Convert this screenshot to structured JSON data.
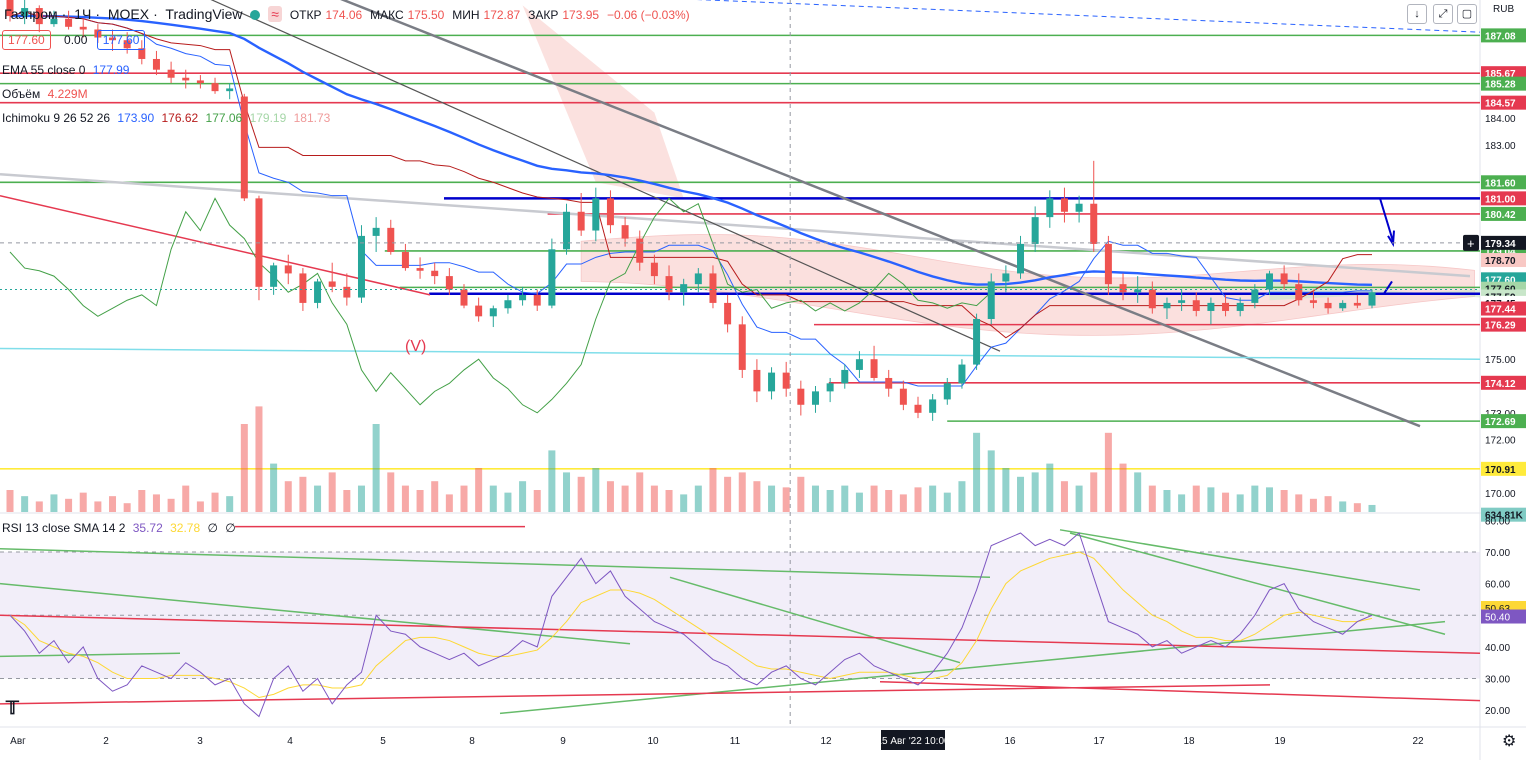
{
  "header": {
    "symbol": "Газпром",
    "interval": "1Ч",
    "exchange": "MOEX",
    "platform": "TradingView",
    "ohlc": {
      "open_label": "ОТКР",
      "open": "174.06",
      "high_label": "МАКС",
      "high": "175.50",
      "low_label": "МИН",
      "low": "172.87",
      "close_label": "ЗАКР",
      "close": "173.95",
      "change": "−0.06 (−0.03%)"
    }
  },
  "price_boxes": {
    "bid": "177.60",
    "spread": "0.00",
    "ask": "177.60"
  },
  "indicators": {
    "ema": {
      "label": "EMA 55 close 0",
      "value": "177.99"
    },
    "volume": {
      "label": "Объём",
      "value": "4.229M"
    },
    "ichimoku": {
      "label": "Ichimoku 9 26 52 26",
      "values": [
        "173.90",
        "176.62",
        "177.06",
        "179.19",
        "181.73"
      ]
    },
    "rsi": {
      "label": "RSI 13 close SMA 14 2",
      "value": "35.72",
      "sma": "32.78",
      "extra1": "∅",
      "extra2": "∅"
    }
  },
  "currency": "RUB",
  "wave_label": "(V)",
  "colors": {
    "up": "#26a69a",
    "down": "#ef5350",
    "ema": "#2962ff",
    "tenkan": "#2962ff",
    "kijun": "#b71c1c",
    "lagging": "#43a047",
    "cloud_bear": "#f8c8c4",
    "cloud_bull": "#c8e6c9",
    "level_green": "#4caf50",
    "level_red": "#e53950",
    "level_blue": "#0000cc",
    "level_yellow": "#ffeb3b",
    "rsi": "#7e57c2",
    "rsi_sma": "#fdd835"
  },
  "crosshair": {
    "time_label": "15 Авг '22  10:00",
    "price_label": "179.34"
  },
  "chart_data": {
    "type": "candlestick",
    "x_ticks": [
      "Авг",
      "2",
      "3",
      "4",
      "5",
      "8",
      "9",
      "10",
      "11",
      "12",
      "15 Авг '22  10:00",
      "16",
      "17",
      "18",
      "19",
      "22"
    ],
    "price_ticks": [
      "185.67",
      "185.28",
      "184.00",
      "183.00",
      "181.60",
      "181.00",
      "180.42",
      "179.04",
      "178.70",
      "177.68",
      "177.60",
      "177.60",
      "177.59",
      "177.45",
      "177.44",
      "176.29",
      "175.00",
      "174.12",
      "173.00",
      "172.69",
      "172.00",
      "170.91",
      "170.00",
      "634.81K",
      "RUB",
      "187.08",
      "184.57",
      "179.34"
    ],
    "ylim": [
      169.3,
      188.4
    ],
    "candles": [
      [
        188.6,
        188.6,
        187.6,
        187.8
      ],
      [
        187.8,
        188.4,
        187.5,
        188.1
      ],
      [
        188.1,
        188.2,
        187.2,
        187.5
      ],
      [
        187.5,
        188.0,
        187.4,
        187.7
      ],
      [
        187.7,
        188.0,
        187.3,
        187.4
      ],
      [
        187.4,
        187.7,
        187.0,
        187.3
      ],
      [
        187.3,
        187.5,
        186.8,
        187.0
      ],
      [
        187.0,
        187.3,
        186.5,
        186.9
      ],
      [
        186.9,
        187.2,
        186.4,
        186.6
      ],
      [
        186.6,
        186.9,
        186.0,
        186.2
      ],
      [
        186.2,
        186.5,
        185.6,
        185.8
      ],
      [
        185.8,
        186.1,
        185.3,
        185.5
      ],
      [
        185.5,
        185.8,
        185.1,
        185.4
      ],
      [
        185.4,
        185.6,
        185.1,
        185.3
      ],
      [
        185.3,
        185.5,
        184.9,
        185.0
      ],
      [
        185.0,
        185.3,
        184.7,
        185.1
      ],
      [
        184.8,
        184.9,
        180.9,
        181.0
      ],
      [
        181.0,
        181.1,
        177.2,
        177.7
      ],
      [
        177.7,
        178.6,
        177.4,
        178.5
      ],
      [
        178.5,
        178.9,
        177.8,
        178.2
      ],
      [
        178.2,
        178.4,
        176.8,
        177.1
      ],
      [
        177.1,
        178.0,
        176.9,
        177.9
      ],
      [
        177.9,
        178.6,
        177.5,
        177.7
      ],
      [
        177.7,
        178.2,
        177.0,
        177.3
      ],
      [
        177.3,
        180.0,
        177.1,
        179.6
      ],
      [
        179.6,
        180.3,
        179.0,
        179.9
      ],
      [
        179.9,
        180.2,
        178.9,
        179.0
      ],
      [
        179.0,
        179.3,
        178.3,
        178.4
      ],
      [
        178.4,
        178.8,
        178.0,
        178.3
      ],
      [
        178.3,
        178.6,
        177.8,
        178.1
      ],
      [
        178.1,
        178.4,
        177.4,
        177.6
      ],
      [
        177.6,
        177.8,
        176.9,
        177.0
      ],
      [
        177.0,
        177.3,
        176.4,
        176.6
      ],
      [
        176.6,
        177.0,
        176.2,
        176.9
      ],
      [
        176.9,
        177.4,
        176.7,
        177.2
      ],
      [
        177.2,
        177.7,
        177.0,
        177.4
      ],
      [
        177.4,
        177.6,
        176.8,
        177.0
      ],
      [
        177.0,
        179.5,
        176.9,
        179.1
      ],
      [
        179.1,
        180.8,
        178.9,
        180.5
      ],
      [
        180.5,
        181.2,
        179.6,
        179.8
      ],
      [
        179.8,
        181.4,
        179.4,
        181.0
      ],
      [
        181.0,
        181.3,
        179.7,
        180.0
      ],
      [
        180.0,
        180.3,
        179.2,
        179.5
      ],
      [
        179.5,
        179.8,
        178.3,
        178.6
      ],
      [
        178.6,
        178.9,
        177.8,
        178.1
      ],
      [
        178.1,
        178.5,
        177.2,
        177.5
      ],
      [
        177.5,
        178.0,
        177.0,
        177.8
      ],
      [
        177.8,
        178.4,
        177.5,
        178.2
      ],
      [
        178.2,
        178.5,
        176.9,
        177.1
      ],
      [
        177.1,
        177.4,
        176.0,
        176.3
      ],
      [
        176.3,
        176.6,
        174.3,
        174.6
      ],
      [
        174.6,
        175.0,
        173.4,
        173.8
      ],
      [
        173.8,
        174.7,
        173.5,
        174.5
      ],
      [
        174.5,
        174.9,
        173.6,
        173.9
      ],
      [
        173.9,
        174.2,
        172.9,
        173.3
      ],
      [
        173.3,
        174.0,
        173.0,
        173.8
      ],
      [
        173.8,
        174.3,
        173.4,
        174.1
      ],
      [
        174.1,
        174.8,
        173.9,
        174.6
      ],
      [
        174.6,
        175.3,
        174.3,
        175.0
      ],
      [
        175.0,
        175.5,
        174.2,
        174.3
      ],
      [
        174.3,
        174.6,
        173.6,
        173.9
      ],
      [
        173.9,
        174.2,
        173.1,
        173.3
      ],
      [
        173.3,
        173.6,
        172.8,
        173.0
      ],
      [
        173.0,
        173.7,
        172.7,
        173.5
      ],
      [
        173.5,
        174.3,
        173.3,
        174.1
      ],
      [
        174.1,
        175.0,
        173.9,
        174.8
      ],
      [
        174.8,
        176.7,
        174.6,
        176.5
      ],
      [
        176.5,
        178.2,
        176.3,
        177.9
      ],
      [
        177.9,
        178.5,
        177.5,
        178.2
      ],
      [
        178.2,
        179.6,
        178.0,
        179.3
      ],
      [
        179.3,
        180.7,
        179.0,
        180.3
      ],
      [
        180.3,
        181.3,
        179.9,
        181.0
      ],
      [
        181.0,
        181.4,
        180.1,
        180.5
      ],
      [
        180.5,
        181.1,
        180.1,
        180.8
      ],
      [
        180.8,
        182.4,
        179.0,
        179.3
      ],
      [
        179.3,
        179.6,
        177.4,
        177.8
      ],
      [
        177.8,
        178.2,
        177.2,
        177.5
      ],
      [
        177.5,
        178.1,
        177.1,
        177.6
      ],
      [
        177.6,
        177.9,
        176.7,
        176.9
      ],
      [
        176.9,
        177.3,
        176.5,
        177.1
      ],
      [
        177.1,
        177.6,
        176.8,
        177.2
      ],
      [
        177.2,
        177.5,
        176.6,
        176.8
      ],
      [
        176.8,
        177.3,
        176.3,
        177.1
      ],
      [
        177.1,
        177.4,
        176.6,
        176.8
      ],
      [
        176.8,
        177.3,
        176.6,
        177.1
      ],
      [
        177.1,
        177.8,
        176.9,
        177.6
      ],
      [
        177.6,
        178.3,
        177.4,
        178.2
      ],
      [
        178.2,
        178.5,
        177.6,
        177.8
      ],
      [
        177.8,
        178.2,
        177.0,
        177.2
      ],
      [
        177.2,
        177.6,
        176.9,
        177.1
      ],
      [
        177.1,
        177.3,
        176.7,
        176.9
      ],
      [
        176.9,
        177.2,
        176.8,
        177.1
      ],
      [
        177.1,
        177.4,
        176.9,
        177.0
      ],
      [
        177.0,
        177.6,
        176.9,
        177.5
      ]
    ],
    "volume_max": 1.5,
    "volumes": [
      0.25,
      0.18,
      0.12,
      0.2,
      0.15,
      0.22,
      0.12,
      0.18,
      0.1,
      0.25,
      0.2,
      0.15,
      0.3,
      0.12,
      0.22,
      0.18,
      1.0,
      1.2,
      0.55,
      0.35,
      0.4,
      0.3,
      0.45,
      0.25,
      0.3,
      1.0,
      0.45,
      0.3,
      0.25,
      0.35,
      0.2,
      0.3,
      0.5,
      0.3,
      0.22,
      0.35,
      0.25,
      0.7,
      0.45,
      0.4,
      0.5,
      0.35,
      0.3,
      0.45,
      0.3,
      0.25,
      0.2,
      0.3,
      0.5,
      0.4,
      0.45,
      0.35,
      0.3,
      0.28,
      0.4,
      0.3,
      0.25,
      0.3,
      0.22,
      0.3,
      0.25,
      0.2,
      0.28,
      0.3,
      0.22,
      0.35,
      0.9,
      0.7,
      0.5,
      0.4,
      0.45,
      0.55,
      0.35,
      0.3,
      0.45,
      0.9,
      0.55,
      0.45,
      0.3,
      0.25,
      0.2,
      0.3,
      0.28,
      0.22,
      0.2,
      0.3,
      0.28,
      0.25,
      0.2,
      0.15,
      0.18,
      0.12,
      0.1,
      0.08
    ],
    "levels": [
      {
        "price": "187.08",
        "color": "green",
        "from": 0.0
      },
      {
        "price": "185.67",
        "color": "red",
        "from": 0.0
      },
      {
        "price": "185.28",
        "color": "green",
        "from": 0.0
      },
      {
        "price": "184.57",
        "color": "red",
        "from": 0.0
      },
      {
        "price": "181.60",
        "color": "green",
        "from": 0.0
      },
      {
        "price": "181.00",
        "color": "blue",
        "from": 0.3
      },
      {
        "price": "180.42",
        "color": "red",
        "from": 0.37
      },
      {
        "price": "179.04",
        "color": "green",
        "from": 0.26
      },
      {
        "price": "177.68",
        "color": "green",
        "from": 0.27
      },
      {
        "price": "177.44",
        "color": "blue",
        "from": 0.29
      },
      {
        "price": "176.29",
        "color": "red",
        "from": 0.55
      },
      {
        "price": "174.12",
        "color": "red",
        "from": 0.56
      },
      {
        "price": "172.69",
        "color": "green",
        "from": 0.64
      },
      {
        "price": "170.91",
        "color": "yellow",
        "from": 0.0
      }
    ],
    "rsi": {
      "ylim": [
        15,
        82
      ],
      "ticks": [
        "80.00",
        "70.00",
        "60.00",
        "50.63",
        "50.40",
        "40.00",
        "30.00",
        "20.00"
      ],
      "values": [
        50,
        45,
        38,
        42,
        35,
        40,
        30,
        26,
        28,
        34,
        32,
        30,
        35,
        32,
        28,
        30,
        22,
        18,
        30,
        34,
        26,
        30,
        22,
        28,
        32,
        50,
        45,
        44,
        40,
        38,
        36,
        38,
        34,
        36,
        38,
        42,
        40,
        56,
        62,
        68,
        60,
        64,
        56,
        52,
        48,
        46,
        44,
        40,
        36,
        34,
        30,
        28,
        32,
        34,
        30,
        28,
        32,
        36,
        38,
        34,
        32,
        30,
        28,
        32,
        38,
        46,
        58,
        72,
        74,
        76,
        72,
        74,
        72,
        76,
        62,
        48,
        46,
        44,
        40,
        42,
        38,
        40,
        42,
        40,
        44,
        50,
        58,
        60,
        52,
        48,
        46,
        44,
        48,
        50
      ],
      "sma": [
        50,
        47,
        42,
        40,
        38,
        37,
        35,
        32,
        30,
        30,
        30,
        31,
        31,
        31,
        30,
        29,
        27,
        24,
        25,
        27,
        28,
        28,
        27,
        27,
        28,
        34,
        38,
        42,
        43,
        43,
        42,
        40,
        38,
        37,
        37,
        38,
        39,
        43,
        48,
        54,
        56,
        58,
        58,
        57,
        55,
        52,
        49,
        46,
        43,
        40,
        37,
        34,
        33,
        33,
        32,
        31,
        30,
        31,
        32,
        32,
        32,
        31,
        30,
        30,
        31,
        35,
        42,
        52,
        60,
        64,
        66,
        68,
        69,
        70,
        68,
        63,
        58,
        54,
        50,
        48,
        45,
        43,
        43,
        42,
        42,
        44,
        47,
        50,
        51,
        50,
        49,
        48,
        48,
        49
      ]
    }
  }
}
